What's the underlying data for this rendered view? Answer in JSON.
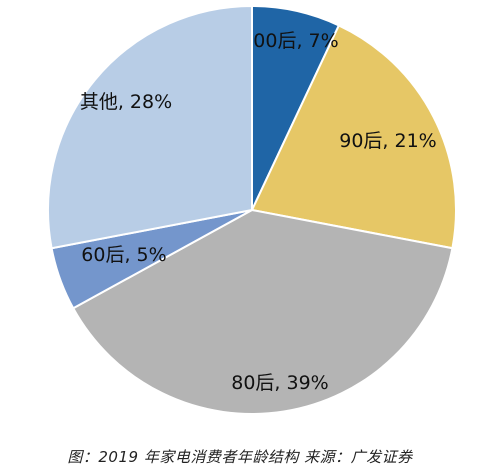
{
  "chart_data": {
    "type": "pie",
    "title": "",
    "start_angle_deg": 0,
    "direction": "clockwise",
    "slices": [
      {
        "label": "00后, 7%",
        "value": 7,
        "color": "#1f65a6"
      },
      {
        "label": "90后, 21%",
        "value": 21,
        "color": "#e6c766"
      },
      {
        "label": "80后, 39%",
        "value": 39,
        "color": "#b4b4b4"
      },
      {
        "label": "60后, 5%",
        "value": 5,
        "color": "#7496cc"
      },
      {
        "label": "其他, 28%",
        "value": 28,
        "color": "#b8cde6"
      }
    ],
    "legend": "none",
    "source_caption": "图：2019 年家电消费者年龄结构  来源：广发证券"
  }
}
